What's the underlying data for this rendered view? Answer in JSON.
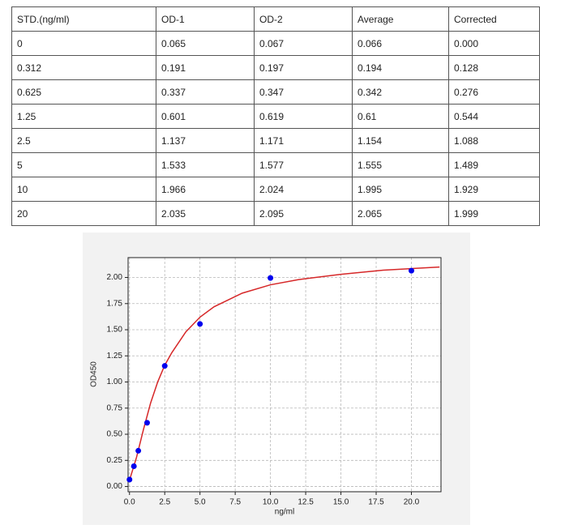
{
  "table": {
    "header": [
      "STD.(ng/ml)",
      "OD-1",
      "OD-2",
      "Average",
      "Corrected"
    ],
    "rows": [
      [
        "0",
        "0.065",
        "0.067",
        "0.066",
        "0.000"
      ],
      [
        "0.312",
        "0.191",
        "0.197",
        "0.194",
        "0.128"
      ],
      [
        "0.625",
        "0.337",
        "0.347",
        "0.342",
        "0.276"
      ],
      [
        "1.25",
        "0.601",
        "0.619",
        "0.61",
        "0.544"
      ],
      [
        "2.5",
        "1.137",
        "1.171",
        "1.154",
        "1.088"
      ],
      [
        "5",
        "1.533",
        "1.577",
        "1.555",
        "1.489"
      ],
      [
        "10",
        "1.966",
        "2.024",
        "1.995",
        "1.929"
      ],
      [
        "20",
        "2.035",
        "2.095",
        "2.065",
        "1.999"
      ]
    ]
  },
  "chart_data": {
    "type": "scatter",
    "xlabel": "ng/ml",
    "ylabel": "OD450",
    "xlim": [
      -0.1,
      22.1
    ],
    "ylim": [
      -0.05,
      2.19
    ],
    "xticks": [
      {
        "value": 0,
        "label": "0.0"
      },
      {
        "value": 2.5,
        "label": "2.5"
      },
      {
        "value": 5,
        "label": "5.0"
      },
      {
        "value": 7.5,
        "label": "7.5"
      },
      {
        "value": 10,
        "label": "10.0"
      },
      {
        "value": 12.5,
        "label": "12.5"
      },
      {
        "value": 15,
        "label": "15.0"
      },
      {
        "value": 17.5,
        "label": "17.5"
      },
      {
        "value": 20,
        "label": "20.0"
      }
    ],
    "yticks": [
      {
        "value": 0,
        "label": "0.00"
      },
      {
        "value": 0.25,
        "label": "0.25"
      },
      {
        "value": 0.5,
        "label": "0.50"
      },
      {
        "value": 0.75,
        "label": "0.75"
      },
      {
        "value": 1,
        "label": "1.00"
      },
      {
        "value": 1.25,
        "label": "1.25"
      },
      {
        "value": 1.5,
        "label": "1.50"
      },
      {
        "value": 1.75,
        "label": "1.75"
      },
      {
        "value": 2,
        "label": "2.00"
      }
    ],
    "grid": true,
    "points": {
      "color": "#0000ee",
      "x": [
        0,
        0.312,
        0.625,
        1.25,
        2.5,
        5,
        10,
        20
      ],
      "values": [
        0.066,
        0.194,
        0.342,
        0.61,
        1.154,
        1.555,
        1.995,
        2.065
      ]
    },
    "fit": {
      "color": "#d62728",
      "x": [
        0,
        0.5,
        1,
        1.5,
        2,
        2.5,
        3,
        4,
        5,
        6,
        8,
        10,
        12,
        15,
        18,
        22
      ],
      "values": [
        0.06,
        0.28,
        0.55,
        0.8,
        1.0,
        1.16,
        1.28,
        1.48,
        1.62,
        1.72,
        1.85,
        1.93,
        1.98,
        2.03,
        2.07,
        2.1
      ]
    }
  }
}
